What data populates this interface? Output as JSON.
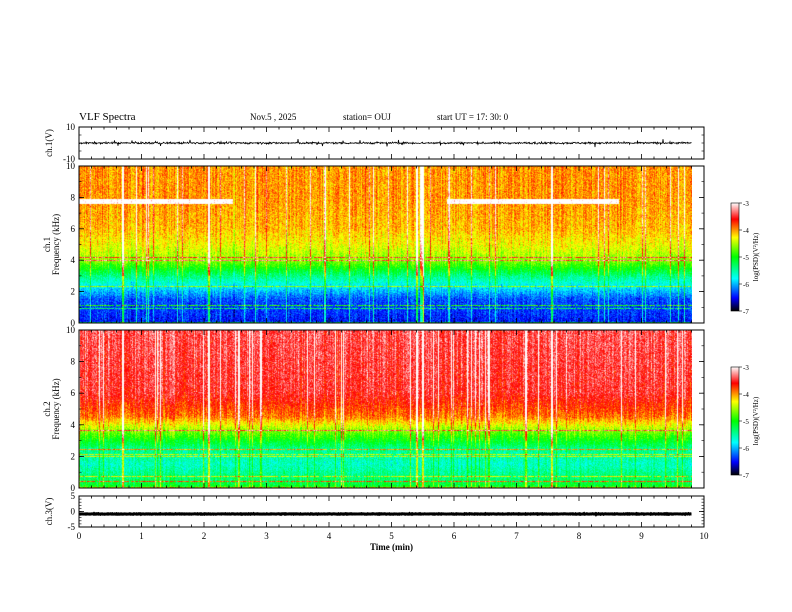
{
  "header": {
    "title": "VLF Spectra",
    "date": "Nov.5 , 2025",
    "station": "station= OUJ",
    "start": "start UT = 17: 30: 0"
  },
  "colors": {
    "colormap": [
      "#000080",
      "#0000ff",
      "#00ffff",
      "#00ff00",
      "#ffff00",
      "#ff0000",
      "#ffffff"
    ],
    "waveform": "#000000",
    "axes": "#000000"
  },
  "chart_data": [
    {
      "type": "line",
      "panel": "ch1-waveform",
      "ylabel": "ch.1(V)",
      "ylim": [
        -10,
        10
      ],
      "yticks": [
        "10",
        "-10"
      ],
      "x_range": [
        0,
        9.8
      ],
      "baseline": 0,
      "amplitude": 1
    },
    {
      "type": "heatmap",
      "panel": "ch1-spectrogram",
      "ylabel": "ch.1 Frequency (kHz)",
      "ylim": [
        0,
        10
      ],
      "yticks": [
        "0",
        "2",
        "4",
        "6",
        "8",
        "10"
      ],
      "x_range": [
        0,
        9.8
      ],
      "colorbar": {
        "label": "log(PSD)(V²/Hz)",
        "range": [
          -7,
          -3
        ],
        "ticks": [
          "-3",
          "-4",
          "-5",
          "-6",
          "-7"
        ]
      },
      "profile": [
        [
          0,
          -6.5
        ],
        [
          0.5,
          -6.4
        ],
        [
          1.5,
          -6.3
        ],
        [
          2,
          -6.0
        ],
        [
          3,
          -5.4
        ],
        [
          4,
          -4.6
        ],
        [
          5,
          -4.3
        ],
        [
          6,
          -4.1
        ],
        [
          8,
          -4.0
        ],
        [
          10,
          -4.0
        ]
      ]
    },
    {
      "type": "heatmap",
      "panel": "ch2-spectrogram",
      "ylabel": "ch.2 Frequency (kHz)",
      "ylim": [
        0,
        10
      ],
      "yticks": [
        "0",
        "2",
        "4",
        "6",
        "8",
        "10"
      ],
      "x_range": [
        0,
        9.8
      ],
      "colorbar": {
        "label": "log(PSD)(V²/Hz)",
        "range": [
          -7,
          -3
        ],
        "ticks": [
          "-3",
          "-4",
          "-5",
          "-6",
          "-7"
        ]
      },
      "profile": [
        [
          0,
          -5.0
        ],
        [
          0.5,
          -5.3
        ],
        [
          1.5,
          -5.6
        ],
        [
          2.5,
          -5.4
        ],
        [
          3.5,
          -4.7
        ],
        [
          4.5,
          -3.9
        ],
        [
          6,
          -3.5
        ],
        [
          10,
          -3.4
        ]
      ]
    },
    {
      "type": "line",
      "panel": "ch3-waveform",
      "ylabel": "ch.3(V)",
      "ylim": [
        -5,
        5
      ],
      "yticks": [
        "5",
        "0",
        "-5"
      ],
      "x_range": [
        0,
        9.8
      ],
      "baseline": -0.8,
      "amplitude": 0.15
    }
  ],
  "xaxis": {
    "label": "Time (min)",
    "ticks": [
      "0",
      "1",
      "2",
      "3",
      "4",
      "5",
      "6",
      "7",
      "8",
      "9",
      "10"
    ],
    "range": [
      0,
      10
    ]
  }
}
